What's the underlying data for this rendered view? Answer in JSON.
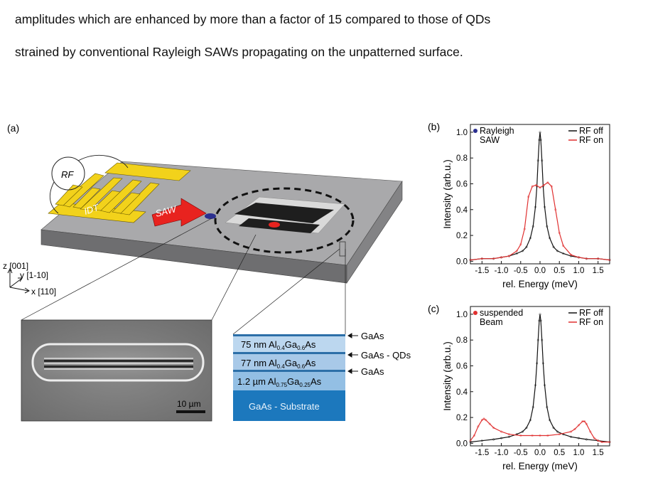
{
  "text": {
    "line1": "amplitudes which are enhanced by more than a factor of 15 compared to those of QDs",
    "line2": "strained by conventional Rayleigh SAWs propagating on the unpatterned surface."
  },
  "panel_a": {
    "label": "(a)",
    "rf": "RF",
    "idt": "IDT",
    "saw": "SAW",
    "axes": {
      "z": "z [001]",
      "y": "y [1-10]",
      "x": "x [110]"
    },
    "scalebar": "10 µm",
    "layers": [
      {
        "text": "75 nm Al",
        "sub1": "0.4",
        "mid": "Ga",
        "sub2": "0.6",
        "end": "As"
      },
      {
        "text": "77 nm Al",
        "sub1": "0.4",
        "mid": "Ga",
        "sub2": "0.6",
        "end": "As"
      },
      {
        "text": "1.2 µm Al",
        "sub1": "0.75",
        "mid": "Ga",
        "sub2": "0.25",
        "end": "As"
      },
      {
        "text": "GaAs - Substrate"
      }
    ],
    "layer_arrows": [
      "GaAs",
      "GaAs - QDs",
      "GaAs"
    ]
  },
  "chart_data": [
    {
      "type": "line",
      "panel": "(b)",
      "annotation": [
        "Rayleigh",
        "SAW"
      ],
      "marker_color": "#2b2f8f",
      "xlabel": "rel. Energy (meV)",
      "ylabel": "Intensity (arb.u.)",
      "xlim": [
        -1.8,
        1.8
      ],
      "ylim": [
        -0.02,
        1.06
      ],
      "xticks": [
        "-1.5",
        "-1.0",
        "-0.5",
        "0.0",
        "0.5",
        "1.0",
        "1.5"
      ],
      "xtick_values": [
        -1.5,
        -1.0,
        -0.5,
        0.0,
        0.5,
        1.0,
        1.5
      ],
      "yticks": [
        "0.0",
        "0.2",
        "0.4",
        "0.6",
        "0.8",
        "1.0"
      ],
      "ytick_values": [
        0.0,
        0.2,
        0.4,
        0.6,
        0.8,
        1.0
      ],
      "legend_position": "top-right",
      "series": [
        {
          "name": "RF off",
          "color": "#111111",
          "x": [
            -1.8,
            -1.5,
            -1.2,
            -1.0,
            -0.8,
            -0.6,
            -0.45,
            -0.35,
            -0.25,
            -0.18,
            -0.12,
            -0.08,
            -0.05,
            -0.02,
            0.0,
            0.02,
            0.05,
            0.08,
            0.12,
            0.18,
            0.25,
            0.35,
            0.45,
            0.6,
            0.8,
            1.0,
            1.2,
            1.5,
            1.8
          ],
          "y": [
            0.01,
            0.02,
            0.02,
            0.03,
            0.04,
            0.06,
            0.08,
            0.11,
            0.18,
            0.27,
            0.42,
            0.58,
            0.78,
            0.94,
            1.0,
            0.94,
            0.78,
            0.58,
            0.42,
            0.27,
            0.18,
            0.11,
            0.08,
            0.06,
            0.04,
            0.03,
            0.02,
            0.02,
            0.01
          ]
        },
        {
          "name": "RF on",
          "color": "#e03030",
          "x": [
            -1.8,
            -1.5,
            -1.2,
            -1.0,
            -0.8,
            -0.6,
            -0.5,
            -0.4,
            -0.3,
            -0.2,
            -0.1,
            0.0,
            0.1,
            0.2,
            0.3,
            0.4,
            0.5,
            0.6,
            0.8,
            1.0,
            1.2,
            1.5,
            1.8
          ],
          "y": [
            0.01,
            0.02,
            0.02,
            0.03,
            0.04,
            0.08,
            0.13,
            0.25,
            0.5,
            0.58,
            0.59,
            0.57,
            0.59,
            0.61,
            0.58,
            0.4,
            0.22,
            0.12,
            0.05,
            0.03,
            0.02,
            0.02,
            0.01
          ]
        }
      ]
    },
    {
      "type": "line",
      "panel": "(c)",
      "annotation": [
        "suspended",
        "Beam"
      ],
      "marker_color": "#e03030",
      "xlabel": "rel. Energy (meV)",
      "ylabel": "Intensity (arb.u.)",
      "xlim": [
        -1.8,
        1.8
      ],
      "ylim": [
        -0.02,
        1.06
      ],
      "xticks": [
        "-1.5",
        "-1.0",
        "-0.5",
        "0.0",
        "0.5",
        "1.0",
        "1.5"
      ],
      "xtick_values": [
        -1.5,
        -1.0,
        -0.5,
        0.0,
        0.5,
        1.0,
        1.5
      ],
      "yticks": [
        "0.0",
        "0.2",
        "0.4",
        "0.6",
        "0.8",
        "1.0"
      ],
      "ytick_values": [
        0.0,
        0.2,
        0.4,
        0.6,
        0.8,
        1.0
      ],
      "legend_position": "top-right",
      "series": [
        {
          "name": "RF off",
          "color": "#111111",
          "x": [
            -1.8,
            -1.5,
            -1.2,
            -1.0,
            -0.8,
            -0.6,
            -0.45,
            -0.35,
            -0.25,
            -0.18,
            -0.12,
            -0.08,
            -0.05,
            -0.02,
            0.0,
            0.02,
            0.05,
            0.08,
            0.12,
            0.18,
            0.25,
            0.35,
            0.45,
            0.6,
            0.8,
            1.0,
            1.2,
            1.5,
            1.8
          ],
          "y": [
            0.01,
            0.02,
            0.03,
            0.04,
            0.05,
            0.07,
            0.09,
            0.12,
            0.18,
            0.28,
            0.45,
            0.62,
            0.8,
            0.95,
            1.0,
            0.95,
            0.8,
            0.62,
            0.45,
            0.28,
            0.18,
            0.12,
            0.09,
            0.07,
            0.05,
            0.04,
            0.03,
            0.02,
            0.01
          ]
        },
        {
          "name": "RF on",
          "color": "#e03030",
          "x": [
            -1.8,
            -1.7,
            -1.6,
            -1.5,
            -1.45,
            -1.4,
            -1.3,
            -1.2,
            -1.0,
            -0.8,
            -0.5,
            -0.2,
            0.0,
            0.2,
            0.5,
            0.8,
            0.9,
            1.0,
            1.1,
            1.15,
            1.2,
            1.3,
            1.4,
            1.5,
            1.6,
            1.8
          ],
          "y": [
            0.02,
            0.06,
            0.13,
            0.18,
            0.19,
            0.18,
            0.15,
            0.12,
            0.09,
            0.07,
            0.06,
            0.06,
            0.06,
            0.06,
            0.07,
            0.09,
            0.11,
            0.14,
            0.17,
            0.17,
            0.15,
            0.09,
            0.04,
            0.02,
            0.01,
            0.01
          ]
        }
      ]
    }
  ]
}
